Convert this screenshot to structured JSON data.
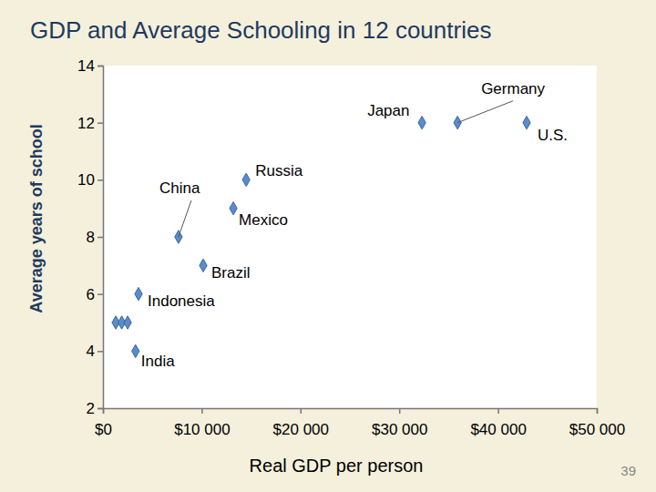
{
  "chart_data": {
    "type": "scatter",
    "title": "GDP and Average Schooling in 12 countries",
    "x_label": "Real GDP per person",
    "y_label": "Average years of school",
    "annotation": "39",
    "x": [
      32300,
      35900,
      42900,
      14500,
      13200,
      7650,
      10150,
      3600,
      3300,
      1300,
      1900,
      2500
    ],
    "values": [
      12,
      12,
      12,
      10,
      9,
      8,
      7,
      6,
      4,
      5,
      5,
      5
    ],
    "point_labels": [
      "Japan",
      "Germany",
      "U.S.",
      "Russia",
      "Mexico",
      "China",
      "Brazil",
      "Indonesia",
      "India",
      null,
      null,
      null
    ],
    "color": "#5b8cc8",
    "marker": "diamond",
    "grid": false,
    "xlim": [
      0,
      50000
    ],
    "xticks": [
      {
        "value": 0,
        "label": "$0"
      },
      {
        "value": 10000,
        "label": "$10 000"
      },
      {
        "value": 20000,
        "label": "$20 000"
      },
      {
        "value": 30000,
        "label": "$30 000"
      },
      {
        "value": 40000,
        "label": "$40 000"
      },
      {
        "value": 50000,
        "label": "$50 000"
      }
    ],
    "ylim": [
      2,
      14
    ],
    "yticks": [
      2,
      4,
      6,
      8,
      10,
      12,
      14
    ]
  }
}
